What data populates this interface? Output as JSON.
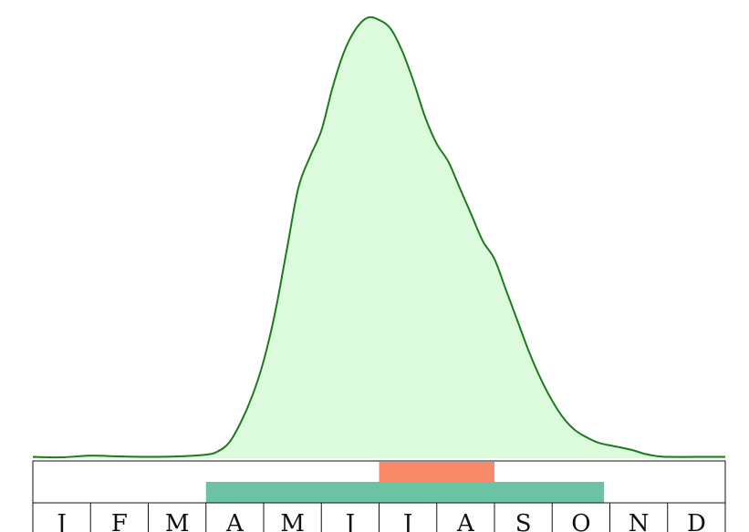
{
  "chart_data": {
    "type": "area",
    "title": "",
    "xlabel": "",
    "ylabel": "",
    "x_axis": {
      "unit": "month",
      "range": [
        0,
        12
      ],
      "tick_labels": [
        "J",
        "F",
        "M",
        "A",
        "M",
        "J",
        "J",
        "A",
        "S",
        "O",
        "N",
        "D"
      ]
    },
    "ylim": [
      0,
      1
    ],
    "grid": false,
    "legend": "none",
    "density": {
      "x": [
        0,
        0.5,
        1,
        1.5,
        2,
        2.5,
        3,
        3.2,
        3.4,
        3.6,
        3.8,
        4.0,
        4.2,
        4.4,
        4.6,
        4.8,
        5.0,
        5.2,
        5.4,
        5.6,
        5.8,
        6.0,
        6.2,
        6.4,
        6.6,
        6.8,
        7.0,
        7.2,
        7.4,
        7.6,
        7.8,
        8.0,
        8.2,
        8.4,
        8.6,
        8.8,
        9.0,
        9.2,
        9.4,
        9.6,
        9.8,
        10.0,
        10.2,
        10.4,
        10.6,
        10.8,
        11.0,
        11.5,
        12.0
      ],
      "y": [
        0.003,
        0.002,
        0.006,
        0.004,
        0.003,
        0.004,
        0.008,
        0.015,
        0.035,
        0.08,
        0.14,
        0.22,
        0.33,
        0.47,
        0.61,
        0.68,
        0.74,
        0.84,
        0.92,
        0.97,
        0.995,
        0.99,
        0.97,
        0.92,
        0.85,
        0.77,
        0.71,
        0.67,
        0.61,
        0.55,
        0.49,
        0.45,
        0.38,
        0.31,
        0.24,
        0.18,
        0.13,
        0.09,
        0.063,
        0.047,
        0.035,
        0.029,
        0.024,
        0.018,
        0.01,
        0.005,
        0.003,
        0.003,
        0.003
      ],
      "fill_color": "#dcfadc",
      "line_color": "#1e7a1e"
    },
    "ranges": [
      {
        "start": 6.0,
        "end": 8.0,
        "color": "#f88a6a"
      },
      {
        "start": 3.0,
        "end": 9.9,
        "color": "#6ac4a4"
      }
    ]
  }
}
